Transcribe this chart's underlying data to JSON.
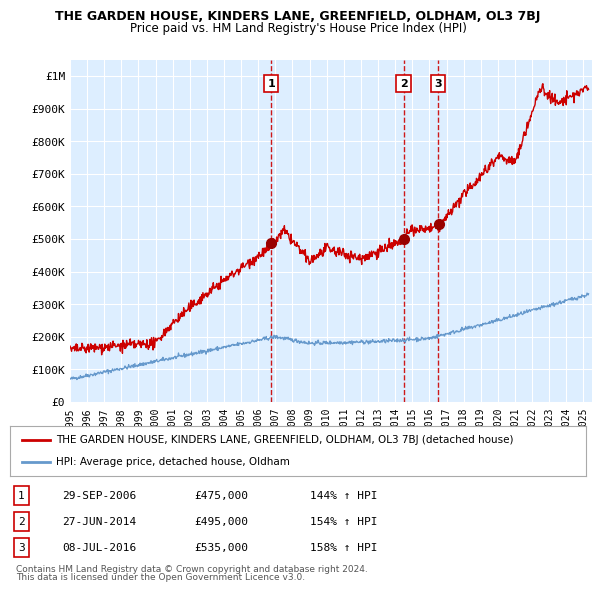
{
  "title": "THE GARDEN HOUSE, KINDERS LANE, GREENFIELD, OLDHAM, OL3 7BJ",
  "subtitle": "Price paid vs. HM Land Registry's House Price Index (HPI)",
  "legend_line1": "THE GARDEN HOUSE, KINDERS LANE, GREENFIELD, OLDHAM, OL3 7BJ (detached house)",
  "legend_line2": "HPI: Average price, detached house, Oldham",
  "transactions": [
    {
      "num": 1,
      "date": "29-SEP-2006",
      "price": 475000,
      "pct": "144%",
      "decimal_year": 2006.75
    },
    {
      "num": 2,
      "date": "27-JUN-2014",
      "price": 495000,
      "pct": "154%",
      "decimal_year": 2014.49
    },
    {
      "num": 3,
      "date": "08-JUL-2016",
      "price": 535000,
      "pct": "158%",
      "decimal_year": 2016.52
    }
  ],
  "red_line_color": "#cc0000",
  "blue_line_color": "#6699cc",
  "background_color": "#ddeeff",
  "plot_bg_color": "#ddeeff",
  "grid_color": "#ffffff",
  "dashed_line_color": "#cc0000",
  "marker_color": "#990000",
  "y_label_color": "#333333",
  "footer_text1": "Contains HM Land Registry data © Crown copyright and database right 2024.",
  "footer_text2": "This data is licensed under the Open Government Licence v3.0.",
  "ylim": [
    0,
    1050000
  ],
  "yticks": [
    0,
    100000,
    200000,
    300000,
    400000,
    500000,
    600000,
    700000,
    800000,
    900000,
    1000000
  ],
  "ytick_labels": [
    "£0",
    "£100K",
    "£200K",
    "£300K",
    "£400K",
    "£500K",
    "£600K",
    "£700K",
    "£800K",
    "£900K",
    "£1M"
  ],
  "xlim_start": 1995.0,
  "xlim_end": 2025.5,
  "xtick_years": [
    1995,
    1996,
    1997,
    1998,
    1999,
    2000,
    2001,
    2002,
    2003,
    2004,
    2005,
    2006,
    2007,
    2008,
    2009,
    2010,
    2011,
    2012,
    2013,
    2014,
    2015,
    2016,
    2017,
    2018,
    2019,
    2020,
    2021,
    2022,
    2023,
    2024,
    2025
  ]
}
